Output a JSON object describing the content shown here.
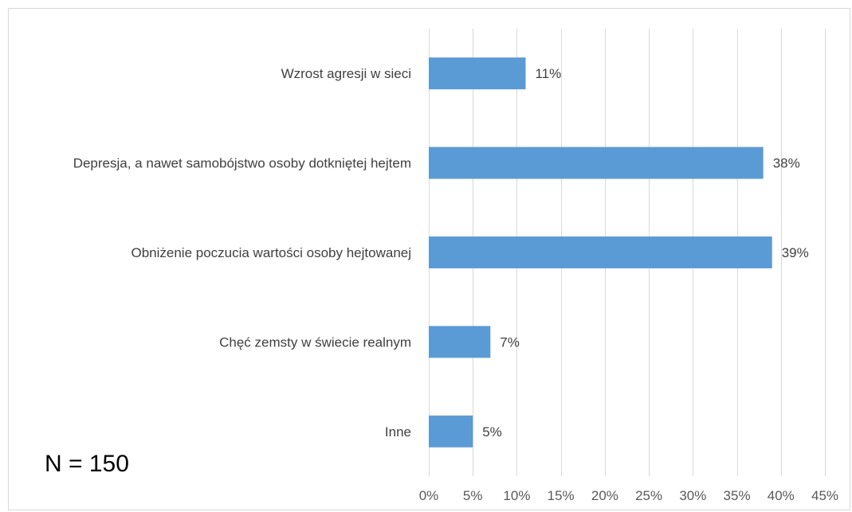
{
  "note": "N = 150",
  "chart_data": {
    "type": "bar",
    "orientation": "horizontal",
    "categories": [
      "Wzrost agresji w sieci",
      "Depresja, a nawet samobójstwo osoby dotkniętej hejtem",
      "Obniżenie poczucia wartości osoby hejtowanej",
      "Chęć zemsty w świecie realnym",
      "Inne"
    ],
    "values": [
      11,
      38,
      39,
      7,
      5
    ],
    "data_labels": [
      "11%",
      "38%",
      "39%",
      "7%",
      "5%"
    ],
    "xlim": [
      0,
      45
    ],
    "xticks": [
      0,
      5,
      10,
      15,
      20,
      25,
      30,
      35,
      40,
      45
    ],
    "xtick_labels": [
      "0%",
      "5%",
      "10%",
      "15%",
      "20%",
      "25%",
      "30%",
      "35%",
      "40%",
      "45%"
    ],
    "grid": true,
    "legend": "none",
    "colors": {
      "bar": "#5b9bd5",
      "grid": "#d9d9d9",
      "text": "#404040"
    }
  }
}
